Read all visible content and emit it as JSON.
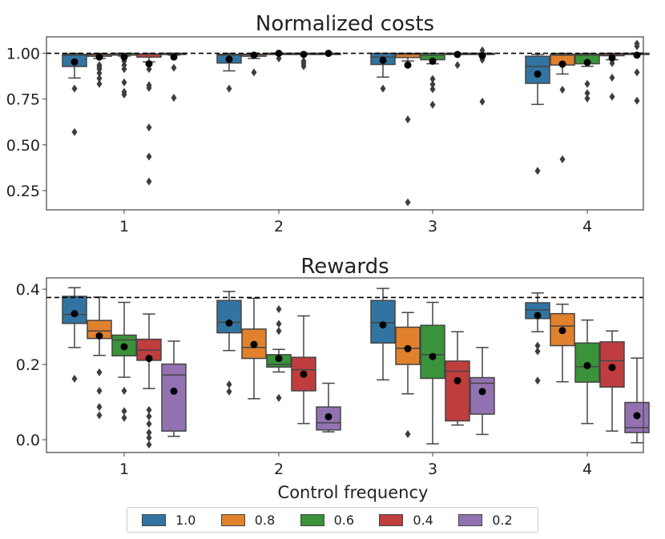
{
  "chart_data": [
    {
      "type": "box",
      "title": "Normalized costs",
      "categories": [
        "1",
        "2",
        "3",
        "4"
      ],
      "xlabel": "",
      "ylabel": "",
      "ylim": [
        0.145,
        1.09
      ],
      "yticks": [
        0.25,
        0.5,
        0.75,
        1.0
      ],
      "ytick_labels": [
        "0.25",
        "0.50",
        "0.75",
        "1.00"
      ],
      "reference_line": 1.0,
      "series": [
        {
          "name": "1.0",
          "color": "#3274a1",
          "groups": [
            {
              "lo": 0.865,
              "q1": 0.928,
              "med": 0.99,
              "q3": 0.995,
              "hi": 1.0,
              "mean": 0.953,
              "outliers": [
                0.807,
                0.57
              ]
            },
            {
              "lo": 0.904,
              "q1": 0.947,
              "med": 0.99,
              "q3": 0.995,
              "hi": 1.0,
              "mean": 0.968,
              "outliers": [
                0.807
              ]
            },
            {
              "lo": 0.87,
              "q1": 0.939,
              "med": 0.98,
              "q3": 1.0,
              "hi": 1.0,
              "mean": 0.962,
              "outliers": [
                0.807
              ]
            },
            {
              "lo": 0.721,
              "q1": 0.836,
              "med": 0.928,
              "q3": 0.984,
              "hi": 0.994,
              "mean": 0.887,
              "outliers": [
                0.358
              ]
            }
          ]
        },
        {
          "name": "0.8",
          "color": "#e1812c",
          "groups": [
            {
              "lo": 0.972,
              "q1": 0.984,
              "med": 0.992,
              "q3": 0.996,
              "hi": 1.0,
              "mean": 0.98,
              "outliers": [
                0.936,
                0.925,
                0.914,
                0.892,
                0.863,
                0.833
              ]
            },
            {
              "lo": 0.972,
              "q1": 0.984,
              "med": 0.992,
              "q3": 0.996,
              "hi": 1.0,
              "mean": 0.99,
              "outliers": [
                0.896
              ]
            },
            {
              "lo": 0.958,
              "q1": 0.977,
              "med": 0.995,
              "q3": 1.0,
              "hi": 1.0,
              "mean": 0.936,
              "outliers": [
                0.639,
                0.186
              ]
            },
            {
              "lo": 0.887,
              "q1": 0.936,
              "med": 0.99,
              "q3": 0.996,
              "hi": 1.0,
              "mean": 0.941,
              "outliers": [
                0.801,
                0.421
              ]
            }
          ]
        },
        {
          "name": "0.6",
          "color": "#3a923a",
          "groups": [
            {
              "lo": 0.985,
              "q1": 0.99,
              "med": 0.998,
              "q3": 1.0,
              "hi": 1.0,
              "mean": 0.98,
              "outliers": [
                0.957,
                0.936,
                0.914,
                0.841,
                0.789,
                0.775
              ]
            },
            {
              "lo": 1.0,
              "q1": 1.0,
              "med": 1.0,
              "q3": 1.0,
              "hi": 1.0,
              "mean": 1.0,
              "outliers": [
                0.972
              ]
            },
            {
              "lo": 0.943,
              "q1": 0.965,
              "med": 0.99,
              "q3": 1.0,
              "hi": 1.0,
              "mean": 0.957,
              "outliers": [
                0.86,
                0.83,
                0.804,
                0.719
              ]
            },
            {
              "lo": 0.929,
              "q1": 0.943,
              "med": 0.99,
              "q3": 0.996,
              "hi": 1.0,
              "mean": 0.95,
              "outliers": [
                0.833,
                0.782,
                0.753
              ]
            }
          ]
        },
        {
          "name": "0.4",
          "color": "#c03d3e",
          "groups": [
            {
              "lo": 0.953,
              "q1": 0.979,
              "med": 0.995,
              "q3": 0.997,
              "hi": 1.0,
              "mean": 0.943,
              "outliers": [
                0.914,
                0.826,
                0.811,
                0.595,
                0.436,
                0.3
              ]
            },
            {
              "lo": 1.0,
              "q1": 1.0,
              "med": 1.0,
              "q3": 1.0,
              "hi": 1.0,
              "mean": 0.994,
              "outliers": [
                0.957,
                0.943,
                0.929
              ]
            },
            {
              "lo": 1.0,
              "q1": 1.0,
              "med": 1.0,
              "q3": 1.0,
              "hi": 1.0,
              "mean": 0.994,
              "outliers": [
                0.936
              ]
            },
            {
              "lo": 0.965,
              "q1": 0.987,
              "med": 0.995,
              "q3": 1.0,
              "hi": 1.0,
              "mean": 0.975,
              "outliers": [
                0.946,
                0.867,
                0.763
              ]
            }
          ]
        },
        {
          "name": "0.2",
          "color": "#9372b2",
          "groups": [
            {
              "lo": 0.99,
              "q1": 0.995,
              "med": 1.0,
              "q3": 1.0,
              "hi": 1.0,
              "mean": 0.98,
              "outliers": [
                0.921,
                0.757
              ]
            },
            {
              "lo": 1.0,
              "q1": 1.0,
              "med": 1.0,
              "q3": 1.0,
              "hi": 1.0,
              "mean": 1.0,
              "outliers": []
            },
            {
              "lo": 1.0,
              "q1": 1.0,
              "med": 1.0,
              "q3": 1.0,
              "hi": 1.0,
              "mean": 0.987,
              "outliers": [
                1.016,
                0.965,
                0.736
              ]
            },
            {
              "lo": 1.0,
              "q1": 1.0,
              "med": 1.0,
              "q3": 1.0,
              "hi": 1.0,
              "mean": 0.99,
              "outliers": [
                1.053,
                1.038,
                0.896,
                0.741
              ]
            }
          ]
        }
      ]
    },
    {
      "type": "box",
      "title": "Rewards",
      "categories": [
        "1",
        "2",
        "3",
        "4"
      ],
      "xlabel": "Control frequency",
      "ylabel": "",
      "ylim": [
        -0.034,
        0.43
      ],
      "yticks": [
        0.0,
        0.2,
        0.4
      ],
      "ytick_labels": [
        "0.0",
        "0.2",
        "0.4"
      ],
      "reference_line": 0.378,
      "series": [
        {
          "name": "1.0",
          "color": "#3274a1",
          "groups": [
            {
              "lo": 0.245,
              "q1": 0.309,
              "med": 0.333,
              "q3": 0.381,
              "hi": 0.404,
              "mean": 0.335,
              "outliers": [
                0.162
              ]
            },
            {
              "lo": 0.237,
              "q1": 0.284,
              "med": 0.312,
              "q3": 0.37,
              "hi": 0.394,
              "mean": 0.31,
              "outliers": [
                0.147,
                0.128
              ]
            },
            {
              "lo": 0.159,
              "q1": 0.257,
              "med": 0.311,
              "q3": 0.37,
              "hi": 0.402,
              "mean": 0.305,
              "outliers": []
            },
            {
              "lo": 0.287,
              "q1": 0.322,
              "med": 0.345,
              "q3": 0.364,
              "hi": 0.39,
              "mean": 0.33,
              "outliers": [
                0.25,
                0.235,
                0.157
              ]
            }
          ]
        },
        {
          "name": "0.8",
          "color": "#e1812c",
          "groups": [
            {
              "lo": 0.224,
              "q1": 0.269,
              "med": 0.289,
              "q3": 0.317,
              "hi": 0.379,
              "mean": 0.276,
              "outliers": [
                0.179,
                0.13,
                0.087,
                0.065
              ]
            },
            {
              "lo": 0.109,
              "q1": 0.216,
              "med": 0.245,
              "q3": 0.294,
              "hi": 0.376,
              "mean": 0.253,
              "outliers": []
            },
            {
              "lo": 0.122,
              "q1": 0.2,
              "med": 0.243,
              "q3": 0.299,
              "hi": 0.338,
              "mean": 0.242,
              "outliers": [
                0.015
              ]
            },
            {
              "lo": 0.154,
              "q1": 0.25,
              "med": 0.302,
              "q3": 0.335,
              "hi": 0.36,
              "mean": 0.29,
              "outliers": []
            }
          ]
        },
        {
          "name": "0.6",
          "color": "#3a923a",
          "groups": [
            {
              "lo": 0.166,
              "q1": 0.223,
              "med": 0.265,
              "q3": 0.278,
              "hi": 0.365,
              "mean": 0.247,
              "outliers": [
                0.13,
                0.076,
                0.058
              ]
            },
            {
              "lo": 0.18,
              "q1": 0.193,
              "med": 0.2,
              "q3": 0.226,
              "hi": 0.24,
              "mean": 0.216,
              "outliers": [
                0.347,
                0.308,
                0.289,
                0.111
              ]
            },
            {
              "lo": -0.011,
              "q1": 0.163,
              "med": 0.226,
              "q3": 0.304,
              "hi": 0.365,
              "mean": 0.221,
              "outliers": []
            },
            {
              "lo": 0.043,
              "q1": 0.153,
              "med": 0.194,
              "q3": 0.257,
              "hi": 0.318,
              "mean": 0.197,
              "outliers": []
            }
          ]
        },
        {
          "name": "0.4",
          "color": "#c03d3e",
          "groups": [
            {
              "lo": 0.136,
              "q1": 0.211,
              "med": 0.238,
              "q3": 0.267,
              "hi": 0.334,
              "mean": 0.216,
              "outliers": [
                0.079,
                0.062,
                0.042,
                0.019,
                0.005,
                -0.013
              ]
            },
            {
              "lo": 0.043,
              "q1": 0.13,
              "med": 0.186,
              "q3": 0.219,
              "hi": 0.329,
              "mean": 0.174,
              "outliers": []
            },
            {
              "lo": 0.039,
              "q1": 0.05,
              "med": 0.182,
              "q3": 0.209,
              "hi": 0.287,
              "mean": 0.157,
              "outliers": []
            },
            {
              "lo": 0.023,
              "q1": 0.14,
              "med": 0.21,
              "q3": 0.26,
              "hi": 0.289,
              "mean": 0.192,
              "outliers": []
            }
          ]
        },
        {
          "name": "0.2",
          "color": "#9372b2",
          "groups": [
            {
              "lo": 0.009,
              "q1": 0.023,
              "med": 0.172,
              "q3": 0.201,
              "hi": 0.262,
              "mean": 0.129,
              "outliers": []
            },
            {
              "lo": 0.021,
              "q1": 0.026,
              "med": 0.045,
              "q3": 0.087,
              "hi": 0.15,
              "mean": 0.061,
              "outliers": []
            },
            {
              "lo": 0.014,
              "q1": 0.068,
              "med": 0.15,
              "q3": 0.165,
              "hi": 0.245,
              "mean": 0.128,
              "outliers": []
            },
            {
              "lo": -0.008,
              "q1": 0.019,
              "med": 0.032,
              "q3": 0.099,
              "hi": 0.217,
              "mean": 0.064,
              "outliers": []
            }
          ]
        }
      ]
    }
  ],
  "legend": {
    "placement": "bottom-center",
    "items": [
      {
        "label": "1.0",
        "color": "#3274a1"
      },
      {
        "label": "0.8",
        "color": "#e1812c"
      },
      {
        "label": "0.6",
        "color": "#3a923a"
      },
      {
        "label": "0.4",
        "color": "#c03d3e"
      },
      {
        "label": "0.2",
        "color": "#9372b2"
      }
    ]
  }
}
